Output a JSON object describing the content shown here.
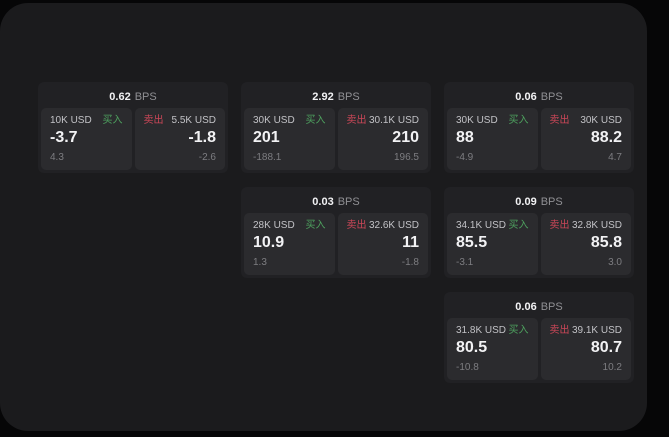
{
  "theme": {
    "buy_color": "#4ea15f",
    "sell_color": "#cc4758",
    "window_bg": "#1b1b1d",
    "card_bg": "#212124",
    "panel_bg": "#2b2b2e"
  },
  "labels": {
    "bps_unit": "BPS",
    "buy": "买入",
    "sell": "卖出"
  },
  "cards": [
    {
      "bps": "0.62",
      "buy": {
        "size": "10K USD",
        "price": "-3.7",
        "delta": "4.3"
      },
      "sell": {
        "size": "5.5K USD",
        "price": "-1.8",
        "delta": "-2.6"
      }
    },
    {
      "bps": "2.92",
      "buy": {
        "size": "30K USD",
        "price": "201",
        "delta": "-188.1"
      },
      "sell": {
        "size": "30.1K USD",
        "price": "210",
        "delta": "196.5"
      }
    },
    {
      "bps": "0.06",
      "buy": {
        "size": "30K USD",
        "price": "88",
        "delta": "-4.9"
      },
      "sell": {
        "size": "30K USD",
        "price": "88.2",
        "delta": "4.7"
      }
    },
    {
      "bps": "0.03",
      "buy": {
        "size": "28K USD",
        "price": "10.9",
        "delta": "1.3"
      },
      "sell": {
        "size": "32.6K USD",
        "price": "11",
        "delta": "-1.8"
      }
    },
    {
      "bps": "0.09",
      "buy": {
        "size": "34.1K USD",
        "price": "85.5",
        "delta": "-3.1"
      },
      "sell": {
        "size": "32.8K USD",
        "price": "85.8",
        "delta": "3.0"
      }
    },
    {
      "bps": "0.06",
      "buy": {
        "size": "31.8K USD",
        "price": "80.5",
        "delta": "-10.8"
      },
      "sell": {
        "size": "39.1K USD",
        "price": "80.7",
        "delta": "10.2"
      }
    }
  ]
}
